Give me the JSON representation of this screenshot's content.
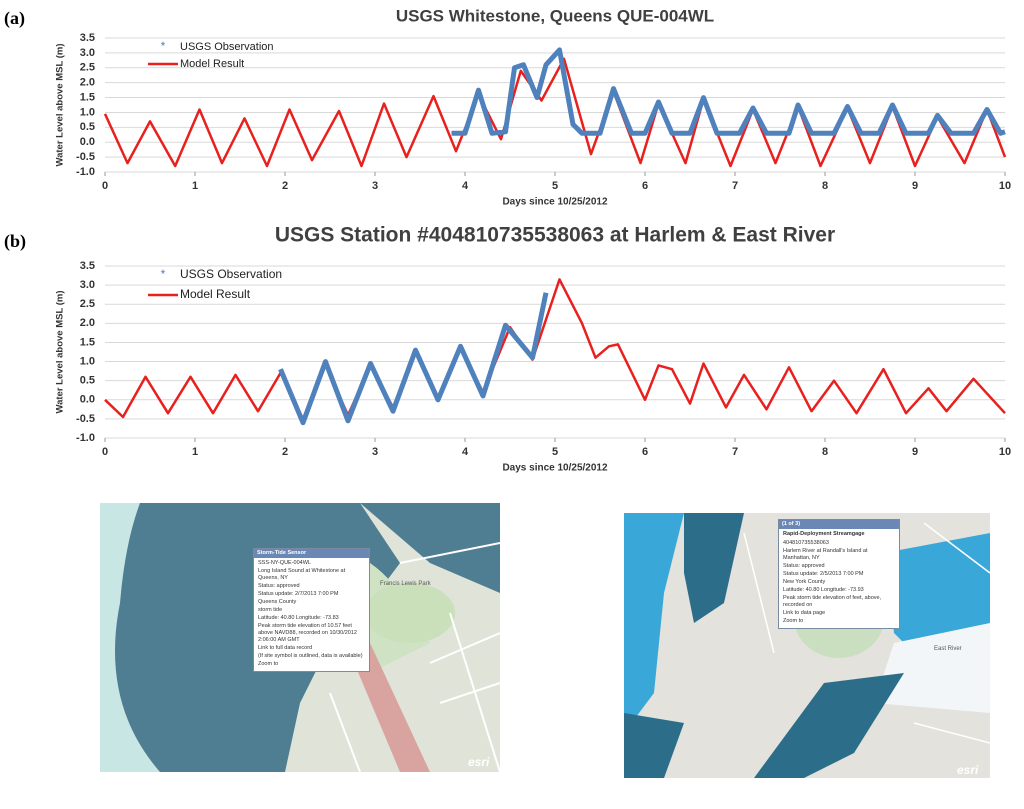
{
  "panels": {
    "a": "(a)",
    "b": "(b)"
  },
  "chart_data": [
    {
      "type": "line",
      "title": "USGS Whitestone, Queens QUE-004WL",
      "x_label": "Days since 10/25/2012",
      "y_label": "Water Level above MSL (m)",
      "xlim": [
        0,
        10
      ],
      "xticks": [
        0,
        1,
        2,
        3,
        4,
        5,
        6,
        7,
        8,
        9,
        10
      ],
      "ylim": [
        -1,
        3.5
      ],
      "yticks": [
        {
          "value": -1,
          "label": "-1.0"
        },
        {
          "value": -0.5,
          "label": "-0.5"
        },
        {
          "value": 0,
          "label": "0.0"
        },
        {
          "value": 0.5,
          "label": "0.5"
        },
        {
          "value": 1,
          "label": "1.0"
        },
        {
          "value": 1.5,
          "label": "1.5"
        },
        {
          "value": 2,
          "label": "2.0"
        },
        {
          "value": 2.5,
          "label": "2.5"
        },
        {
          "value": 3,
          "label": "3.0"
        },
        {
          "value": 3.5,
          "label": "3.5"
        }
      ],
      "grid": true,
      "series": [
        {
          "name": "USGS Observation",
          "color": "#4f81bd",
          "marker": "*",
          "x": [
            3.85,
            4.0,
            4.15,
            4.3,
            4.45,
            4.55,
            4.65,
            4.8,
            4.9,
            5.05,
            5.2,
            5.3,
            5.5,
            5.65,
            5.85,
            6.0,
            6.15,
            6.3,
            6.5,
            6.65,
            6.8,
            7.05,
            7.2,
            7.35,
            7.6,
            7.7,
            7.85,
            8.1,
            8.25,
            8.4,
            8.6,
            8.75,
            8.9,
            9.15,
            9.25,
            9.4,
            9.65,
            9.8,
            9.95,
            10
          ],
          "values": [
            0.3,
            0.3,
            1.75,
            0.3,
            0.35,
            2.5,
            2.6,
            1.5,
            2.6,
            3.1,
            0.6,
            0.3,
            0.3,
            1.8,
            0.3,
            0.3,
            1.35,
            0.3,
            0.3,
            1.5,
            0.3,
            0.3,
            1.15,
            0.3,
            0.3,
            1.25,
            0.3,
            0.3,
            1.2,
            0.3,
            0.3,
            1.25,
            0.3,
            0.3,
            0.9,
            0.3,
            0.3,
            1.1,
            0.3,
            0.35
          ]
        },
        {
          "name": "Model Result",
          "color": "#e8201e",
          "x": [
            0,
            0.25,
            0.5,
            0.78,
            1.05,
            1.3,
            1.55,
            1.8,
            2.05,
            2.3,
            2.6,
            2.85,
            3.1,
            3.35,
            3.65,
            3.9,
            4.15,
            4.4,
            4.62,
            4.85,
            5.1,
            5.4,
            5.65,
            5.95,
            6.15,
            6.45,
            6.65,
            6.95,
            7.2,
            7.45,
            7.7,
            7.95,
            8.25,
            8.5,
            8.75,
            9.0,
            9.25,
            9.55,
            9.8,
            10
          ],
          "values": [
            0.95,
            -0.7,
            0.7,
            -0.8,
            1.1,
            -0.7,
            0.8,
            -0.8,
            1.1,
            -0.6,
            1.05,
            -0.8,
            1.3,
            -0.5,
            1.55,
            -0.3,
            1.6,
            0.1,
            2.4,
            1.4,
            2.8,
            -0.4,
            1.7,
            -0.7,
            1.3,
            -0.7,
            1.45,
            -0.8,
            1.1,
            -0.7,
            1.2,
            -0.8,
            1.15,
            -0.7,
            1.2,
            -0.8,
            0.85,
            -0.7,
            1.1,
            -0.5
          ]
        }
      ]
    },
    {
      "type": "line",
      "title": "USGS Station #404810735538063 at Harlem & East River",
      "x_label": "Days since 10/25/2012",
      "y_label": "Water Level above MSL (m)",
      "xlim": [
        0,
        10
      ],
      "xticks": [
        0,
        1,
        2,
        3,
        4,
        5,
        6,
        7,
        8,
        9,
        10
      ],
      "ylim": [
        -1,
        3.5
      ],
      "yticks": [
        {
          "value": -1,
          "label": "-1.0"
        },
        {
          "value": -0.5,
          "label": "-0.5"
        },
        {
          "value": 0,
          "label": "0.0"
        },
        {
          "value": 0.5,
          "label": "0.5"
        },
        {
          "value": 1,
          "label": "1.0"
        },
        {
          "value": 1.5,
          "label": "1.5"
        },
        {
          "value": 2,
          "label": "2.0"
        },
        {
          "value": 2.5,
          "label": "2.5"
        },
        {
          "value": 3,
          "label": "3.0"
        },
        {
          "value": 3.5,
          "label": "3.5"
        }
      ],
      "grid": true,
      "series": [
        {
          "name": "USGS Observation",
          "color": "#4f81bd",
          "marker": "*",
          "x": [
            1.95,
            2.2,
            2.45,
            2.7,
            2.95,
            3.2,
            3.45,
            3.7,
            3.95,
            4.2,
            4.45,
            4.75,
            4.9
          ],
          "values": [
            0.8,
            -0.6,
            1.0,
            -0.55,
            0.95,
            -0.3,
            1.3,
            0.0,
            1.4,
            0.1,
            1.95,
            1.1,
            2.8
          ]
        },
        {
          "name": "Model Result",
          "color": "#e8201e",
          "x": [
            0,
            0.2,
            0.45,
            0.7,
            0.95,
            1.2,
            1.45,
            1.7,
            1.95,
            2.2,
            2.45,
            2.7,
            2.95,
            3.2,
            3.45,
            3.7,
            3.95,
            4.2,
            4.5,
            4.75,
            5.05,
            5.3,
            5.45,
            5.6,
            5.7,
            6.0,
            6.15,
            6.3,
            6.5,
            6.65,
            6.9,
            7.1,
            7.35,
            7.6,
            7.85,
            8.1,
            8.35,
            8.65,
            8.9,
            9.15,
            9.35,
            9.65,
            10
          ],
          "values": [
            0.0,
            -0.45,
            0.6,
            -0.35,
            0.6,
            -0.35,
            0.65,
            -0.3,
            0.7,
            -0.5,
            0.9,
            -0.4,
            0.9,
            -0.2,
            1.25,
            0.05,
            1.35,
            0.2,
            1.9,
            1.05,
            3.15,
            2.0,
            1.1,
            1.4,
            1.45,
            0.0,
            0.9,
            0.8,
            -0.1,
            0.95,
            -0.2,
            0.65,
            -0.25,
            0.85,
            -0.3,
            0.5,
            -0.35,
            0.8,
            -0.35,
            0.3,
            -0.3,
            0.55,
            -0.35
          ]
        }
      ]
    }
  ],
  "maps": [
    {
      "popup": {
        "title": "Storm-Tide Sensor",
        "lines": [
          "SSS-NY-QUE-004WL",
          "Long Island Sound at Whitestone at Queens, NY",
          "Status: approved",
          "Status update: 2/7/2013 7:00 PM",
          "Queens County",
          "storm tide",
          "Latitude: 40.80 Longitude: -73.83",
          "Peak storm tide elevation of 10.57 feet above NAVD88, recorded on 10/30/2012 2:06:00 AM GMT",
          "Link to full data record",
          "(If site symbol is outlined, data is available)",
          "Zoom to"
        ]
      },
      "labels": [
        "Francis Lewis Park"
      ],
      "logo": "esri"
    },
    {
      "popup": {
        "title": "Rapid-Deployment Streamgage",
        "pager": "(1 of 3)",
        "lines": [
          "404810735538063",
          "Harlem River at Randall's Island at Manhattan, NY",
          "Status: approved",
          "Status update: 2/5/2013 7:00 PM",
          "New York County",
          "Latitude: 40.80 Longitude: -73.93",
          "Peak storm tide elevation of feet, above, recorded on",
          "Link to data page",
          "Zoom to"
        ]
      },
      "labels": [
        "East River"
      ],
      "logo": "esri"
    }
  ]
}
